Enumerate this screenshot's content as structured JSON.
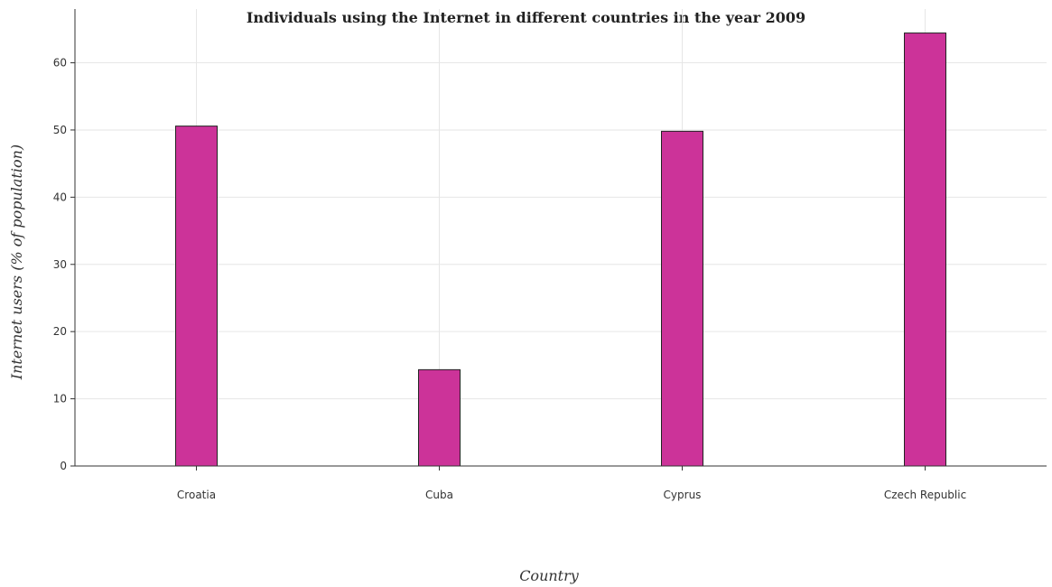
{
  "chart_data": {
    "type": "bar",
    "title": "Individuals using the Internet in different countries in the year 2009",
    "xlabel": "Country",
    "ylabel": "Internet users (% of population)",
    "categories": [
      "Croatia",
      "Cuba",
      "Cyprus",
      "Czech Republic"
    ],
    "values": [
      50.58,
      14.33,
      49.81,
      64.43
    ],
    "ylim": [
      0,
      68
    ],
    "yticks": [
      0,
      10,
      20,
      30,
      40,
      50,
      60
    ],
    "grid": true,
    "bar_color": "#cc3399"
  }
}
